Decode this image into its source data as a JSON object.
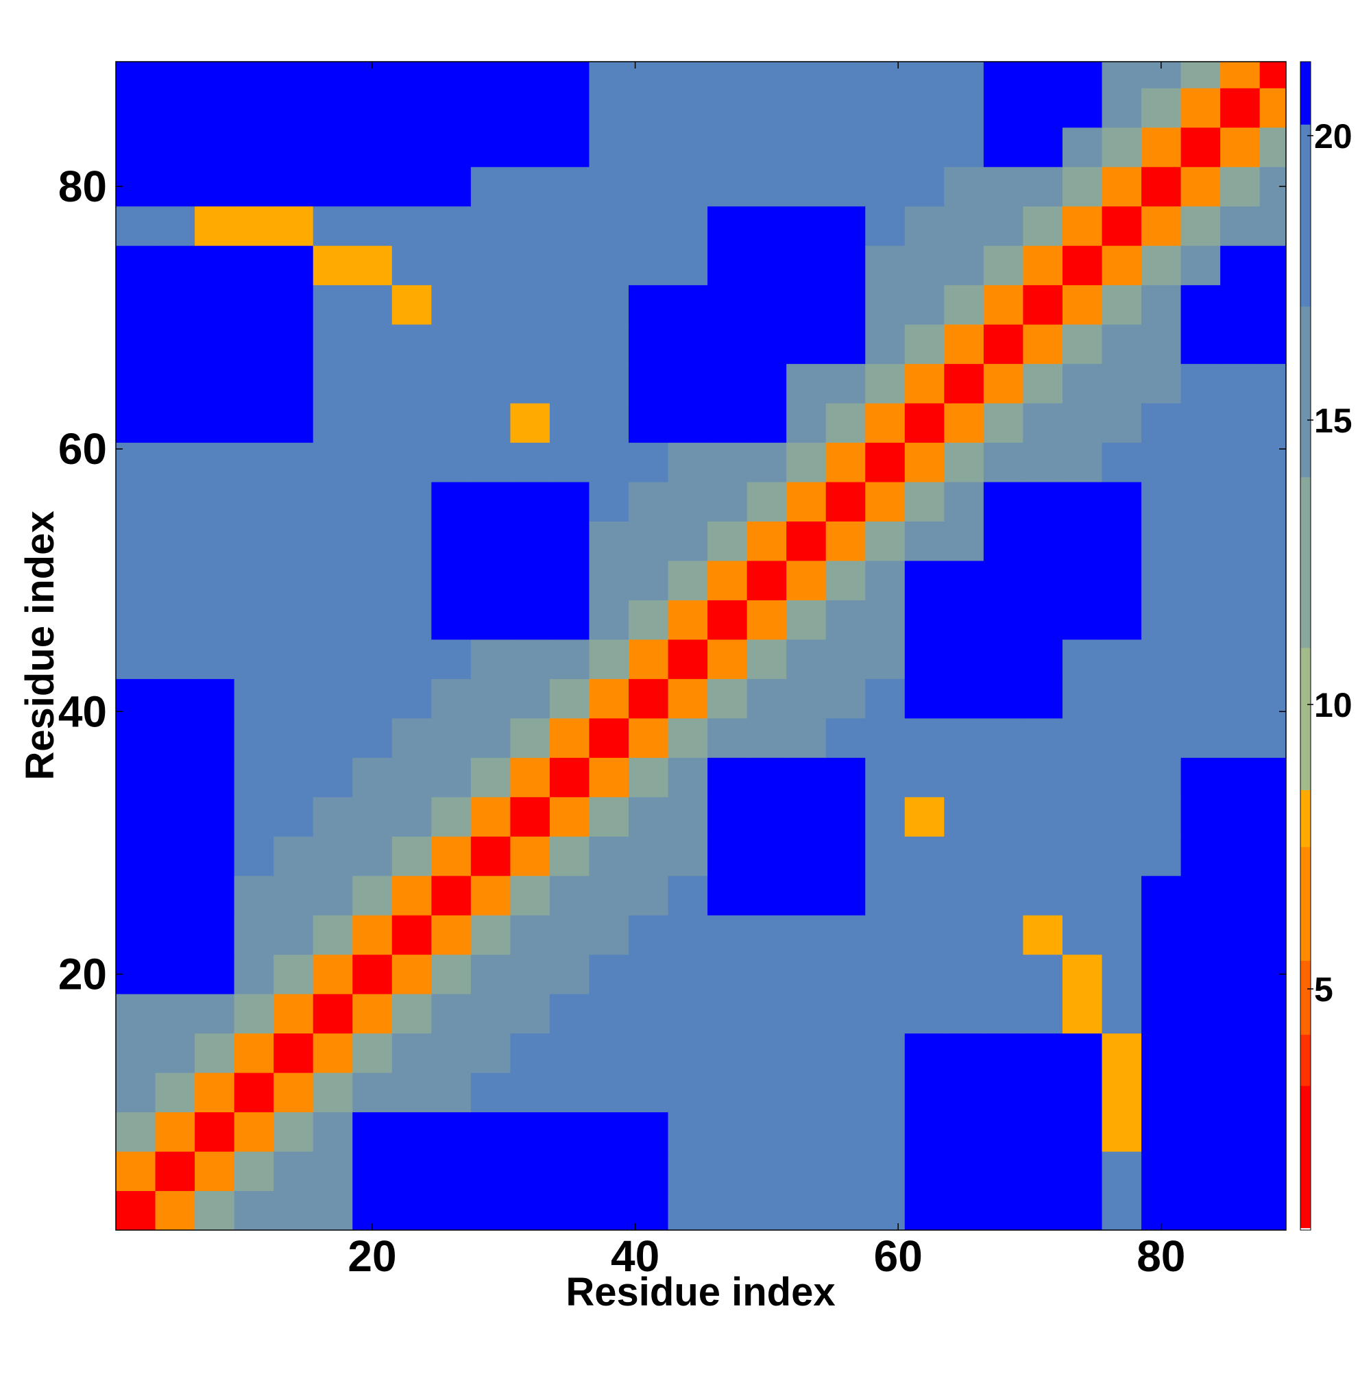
{
  "chart_data": {
    "type": "heatmap",
    "x_label": "Residue index",
    "y_label": "Residue index",
    "x": [
      2,
      5,
      8,
      11,
      14,
      17,
      20,
      23,
      26,
      29,
      32,
      35,
      38,
      41,
      44,
      47,
      50,
      53,
      56,
      59,
      62,
      65,
      68,
      71,
      74,
      77,
      80,
      83,
      86,
      89
    ],
    "y": [
      2,
      5,
      8,
      11,
      14,
      17,
      20,
      23,
      26,
      29,
      32,
      35,
      38,
      41,
      44,
      47,
      50,
      53,
      56,
      59,
      62,
      65,
      68,
      71,
      74,
      77,
      80,
      83,
      86,
      89
    ],
    "xlim": [
      0.5,
      89.5
    ],
    "ylim": [
      0.5,
      89.5
    ],
    "xticks": [
      20,
      40,
      60,
      80
    ],
    "yticks": [
      20,
      40,
      60,
      80
    ],
    "values": [
      [
        2,
        7,
        11,
        14,
        15,
        16,
        21,
        21,
        21,
        21,
        21,
        21,
        21,
        21,
        18,
        18,
        18,
        18,
        18,
        18,
        21,
        21,
        21,
        21,
        21,
        18,
        21,
        21,
        21,
        21
      ],
      [
        7,
        2,
        7,
        11,
        14,
        15,
        21,
        21,
        21,
        21,
        21,
        21,
        21,
        21,
        18,
        18,
        18,
        18,
        18,
        18,
        21,
        21,
        21,
        21,
        21,
        18,
        21,
        21,
        21,
        21
      ],
      [
        11,
        7,
        2,
        7,
        11,
        14,
        21,
        21,
        21,
        21,
        21,
        21,
        21,
        21,
        18,
        18,
        18,
        18,
        18,
        18,
        21,
        21,
        21,
        21,
        21,
        8,
        21,
        21,
        21,
        21
      ],
      [
        14,
        11,
        7,
        2,
        7,
        11,
        14,
        15,
        16,
        17,
        18,
        18,
        18,
        18,
        18,
        18,
        18,
        18,
        18,
        18,
        21,
        21,
        21,
        21,
        21,
        8,
        21,
        21,
        21,
        21
      ],
      [
        15,
        14,
        11,
        7,
        2,
        7,
        11,
        14,
        15,
        16,
        17,
        18,
        18,
        18,
        18,
        18,
        18,
        18,
        18,
        18,
        21,
        21,
        21,
        21,
        21,
        8,
        21,
        21,
        21,
        21
      ],
      [
        16,
        15,
        14,
        11,
        7,
        2,
        7,
        11,
        14,
        15,
        16,
        17,
        18,
        18,
        18,
        18,
        18,
        18,
        18,
        18,
        18,
        18,
        18,
        18,
        8,
        18,
        21,
        21,
        21,
        21
      ],
      [
        21,
        21,
        21,
        14,
        11,
        7,
        2,
        7,
        11,
        14,
        15,
        16,
        17,
        18,
        18,
        18,
        18,
        18,
        18,
        18,
        18,
        18,
        18,
        18,
        8,
        18,
        21,
        21,
        21,
        21
      ],
      [
        21,
        21,
        21,
        15,
        14,
        11,
        7,
        2,
        7,
        11,
        14,
        15,
        16,
        17,
        18,
        18,
        18,
        18,
        18,
        18,
        18,
        18,
        18,
        8,
        18,
        18,
        21,
        21,
        21,
        21
      ],
      [
        21,
        21,
        21,
        16,
        15,
        14,
        11,
        7,
        2,
        7,
        11,
        14,
        15,
        16,
        17,
        21,
        21,
        21,
        21,
        18,
        18,
        18,
        18,
        18,
        18,
        18,
        21,
        21,
        21,
        21
      ],
      [
        21,
        21,
        21,
        17,
        16,
        15,
        14,
        11,
        7,
        2,
        7,
        11,
        14,
        15,
        16,
        21,
        21,
        21,
        21,
        18,
        18,
        18,
        18,
        18,
        18,
        18,
        18,
        21,
        21,
        21
      ],
      [
        21,
        21,
        21,
        18,
        17,
        16,
        15,
        14,
        11,
        7,
        2,
        7,
        11,
        14,
        15,
        21,
        21,
        21,
        21,
        18,
        8,
        18,
        18,
        18,
        18,
        18,
        18,
        21,
        21,
        21
      ],
      [
        21,
        21,
        21,
        18,
        18,
        17,
        16,
        15,
        14,
        11,
        7,
        2,
        7,
        11,
        14,
        21,
        21,
        21,
        21,
        18,
        18,
        18,
        18,
        18,
        18,
        18,
        18,
        21,
        21,
        21
      ],
      [
        21,
        21,
        21,
        18,
        18,
        18,
        17,
        16,
        15,
        14,
        11,
        7,
        2,
        7,
        11,
        14,
        15,
        16,
        17,
        18,
        18,
        18,
        18,
        18,
        18,
        18,
        18,
        18,
        18,
        18
      ],
      [
        21,
        21,
        21,
        18,
        18,
        18,
        18,
        17,
        16,
        15,
        14,
        11,
        7,
        2,
        7,
        11,
        14,
        15,
        16,
        17,
        21,
        21,
        21,
        21,
        18,
        18,
        18,
        18,
        18,
        18
      ],
      [
        18,
        18,
        18,
        18,
        18,
        18,
        18,
        18,
        17,
        16,
        15,
        14,
        11,
        7,
        2,
        7,
        11,
        14,
        15,
        16,
        21,
        21,
        21,
        21,
        18,
        18,
        18,
        18,
        18,
        18
      ],
      [
        18,
        18,
        18,
        18,
        18,
        18,
        18,
        18,
        21,
        21,
        21,
        21,
        14,
        11,
        7,
        2,
        7,
        11,
        14,
        15,
        21,
        21,
        21,
        21,
        21,
        21,
        18,
        18,
        18,
        18
      ],
      [
        18,
        18,
        18,
        18,
        18,
        18,
        18,
        18,
        21,
        21,
        21,
        21,
        15,
        14,
        11,
        7,
        2,
        7,
        11,
        14,
        21,
        21,
        21,
        21,
        21,
        21,
        18,
        18,
        18,
        18
      ],
      [
        18,
        18,
        18,
        18,
        18,
        18,
        18,
        18,
        21,
        21,
        21,
        21,
        16,
        15,
        14,
        11,
        7,
        2,
        7,
        11,
        14,
        15,
        21,
        21,
        21,
        21,
        18,
        18,
        18,
        18
      ],
      [
        18,
        18,
        18,
        18,
        18,
        18,
        18,
        18,
        21,
        21,
        21,
        21,
        17,
        16,
        15,
        14,
        11,
        7,
        2,
        7,
        11,
        14,
        21,
        21,
        21,
        21,
        18,
        18,
        18,
        18
      ],
      [
        18,
        18,
        18,
        18,
        18,
        18,
        18,
        18,
        18,
        18,
        18,
        18,
        18,
        17,
        16,
        15,
        14,
        11,
        7,
        2,
        7,
        11,
        14,
        15,
        16,
        17,
        18,
        18,
        18,
        18
      ],
      [
        21,
        21,
        21,
        21,
        21,
        18,
        18,
        18,
        18,
        18,
        8,
        18,
        18,
        21,
        21,
        21,
        21,
        14,
        11,
        7,
        2,
        7,
        11,
        14,
        15,
        16,
        17,
        18,
        18,
        18
      ],
      [
        21,
        21,
        21,
        21,
        21,
        18,
        18,
        18,
        18,
        18,
        18,
        18,
        18,
        21,
        21,
        21,
        21,
        15,
        14,
        11,
        7,
        2,
        7,
        11,
        14,
        15,
        16,
        17,
        18,
        18
      ],
      [
        21,
        21,
        21,
        21,
        21,
        18,
        18,
        18,
        18,
        18,
        18,
        18,
        18,
        21,
        21,
        21,
        21,
        21,
        21,
        14,
        11,
        7,
        2,
        7,
        11,
        14,
        15,
        21,
        21,
        21
      ],
      [
        21,
        21,
        21,
        21,
        21,
        18,
        18,
        8,
        18,
        18,
        18,
        18,
        18,
        21,
        21,
        21,
        21,
        21,
        21,
        15,
        14,
        11,
        7,
        2,
        7,
        11,
        14,
        21,
        21,
        21
      ],
      [
        21,
        21,
        21,
        21,
        21,
        8,
        8,
        18,
        18,
        18,
        18,
        18,
        18,
        18,
        18,
        21,
        21,
        21,
        21,
        16,
        15,
        14,
        11,
        7,
        2,
        7,
        11,
        14,
        21,
        21
      ],
      [
        18,
        18,
        8,
        8,
        8,
        18,
        18,
        18,
        18,
        18,
        18,
        18,
        18,
        18,
        18,
        21,
        21,
        21,
        21,
        17,
        16,
        15,
        14,
        11,
        7,
        2,
        7,
        11,
        14,
        15
      ],
      [
        21,
        21,
        21,
        21,
        21,
        21,
        21,
        21,
        21,
        18,
        18,
        18,
        18,
        18,
        18,
        18,
        18,
        18,
        18,
        18,
        17,
        16,
        15,
        14,
        11,
        7,
        2,
        7,
        11,
        14
      ],
      [
        21,
        21,
        21,
        21,
        21,
        21,
        21,
        21,
        21,
        21,
        21,
        21,
        18,
        18,
        18,
        18,
        18,
        18,
        18,
        18,
        18,
        17,
        21,
        21,
        14,
        11,
        7,
        2,
        7,
        11
      ],
      [
        21,
        21,
        21,
        21,
        21,
        21,
        21,
        21,
        21,
        21,
        21,
        21,
        18,
        18,
        18,
        18,
        18,
        18,
        18,
        18,
        18,
        18,
        21,
        21,
        21,
        14,
        11,
        7,
        2,
        7
      ],
      [
        21,
        21,
        21,
        21,
        21,
        21,
        21,
        21,
        21,
        21,
        21,
        21,
        18,
        18,
        18,
        18,
        18,
        18,
        18,
        18,
        18,
        18,
        21,
        21,
        21,
        15,
        14,
        11,
        7,
        2
      ]
    ],
    "colorbar": {
      "boundaries": [
        0.8,
        3.3,
        4.2,
        5.5,
        7.5,
        8.5,
        11,
        14,
        17,
        20.2,
        21.3
      ],
      "colors": [
        "#ff0000",
        "#ff3300",
        "#ff6600",
        "#ff8c00",
        "#ffaa00",
        "#a3bb8b",
        "#8aa79c",
        "#6f93ad",
        "#5683bd",
        "#0000ff"
      ],
      "lim": [
        0.76,
        21.3
      ],
      "ticks": [
        5,
        10,
        15,
        20
      ]
    }
  }
}
